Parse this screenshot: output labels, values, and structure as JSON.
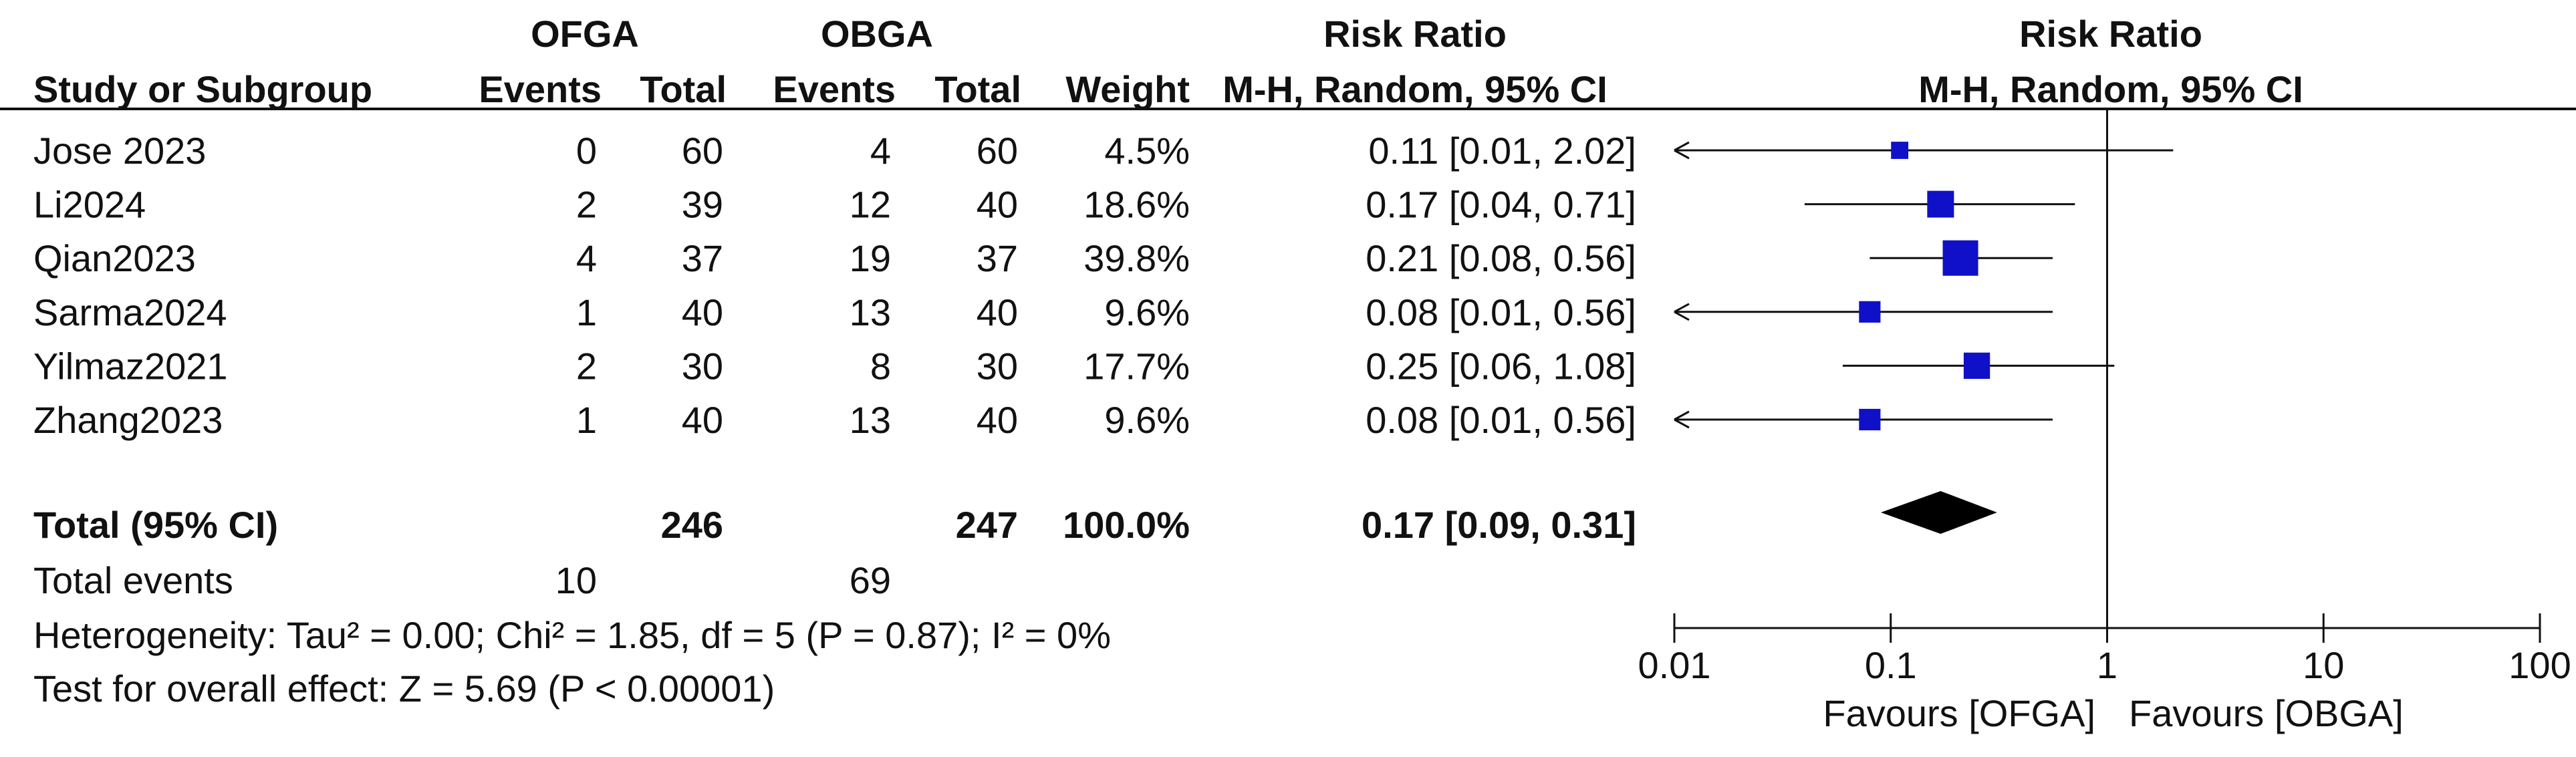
{
  "table": {
    "group1": "OFGA",
    "group2": "OBGA",
    "col_risk_ratio": "Risk Ratio",
    "plot_title": "Risk Ratio",
    "col_study": "Study or Subgroup",
    "col_events": "Events",
    "col_total": "Total",
    "col_weight": "Weight",
    "col_method": "M-H, Random, 95% CI",
    "plot_method": "M-H, Random, 95% CI",
    "total_label": "Total (95% CI)",
    "total_g1": "246",
    "total_g2": "247",
    "total_weight": "100.0%",
    "total_ci": "0.17 [0.09, 0.31]",
    "events_label": "Total events",
    "events_g1": "10",
    "events_g2": "69",
    "heterogeneity": "Heterogeneity: Tau² = 0.00; Chi² = 1.85, df = 5 (P = 0.87); I² = 0%",
    "overall_effect": "Test for overall effect: Z = 5.69 (P < 0.00001)",
    "favours_left": "Favours [OFGA]",
    "favours_right": "Favours [OBGA]"
  },
  "chart_data": {
    "type": "forest",
    "scale": "log",
    "xlim": [
      0.01,
      100
    ],
    "ticks": [
      {
        "value": 0.01,
        "label": "0.01"
      },
      {
        "value": 0.1,
        "label": "0.1"
      },
      {
        "value": 1,
        "label": "1"
      },
      {
        "value": 10,
        "label": "10"
      },
      {
        "value": 100,
        "label": "100"
      }
    ],
    "marker_color": "#1010c8",
    "studies": [
      {
        "name": "Jose 2023",
        "e1": "0",
        "n1": "60",
        "e2": "4",
        "n2": "60",
        "weight": "4.5%",
        "ci_text": "0.11 [0.01, 2.02]",
        "rr": 0.11,
        "lo": 0.01,
        "hi": 2.02,
        "w": 4.5
      },
      {
        "name": "Li2024",
        "e1": "2",
        "n1": "39",
        "e2": "12",
        "n2": "40",
        "weight": "18.6%",
        "ci_text": "0.17 [0.04, 0.71]",
        "rr": 0.17,
        "lo": 0.04,
        "hi": 0.71,
        "w": 18.6
      },
      {
        "name": "Qian2023",
        "e1": "4",
        "n1": "37",
        "e2": "19",
        "n2": "37",
        "weight": "39.8%",
        "ci_text": "0.21 [0.08, 0.56]",
        "rr": 0.21,
        "lo": 0.08,
        "hi": 0.56,
        "w": 39.8
      },
      {
        "name": "Sarma2024",
        "e1": "1",
        "n1": "40",
        "e2": "13",
        "n2": "40",
        "weight": "9.6%",
        "ci_text": "0.08 [0.01, 0.56]",
        "rr": 0.08,
        "lo": 0.01,
        "hi": 0.56,
        "w": 9.6
      },
      {
        "name": "Yilmaz2021",
        "e1": "2",
        "n1": "30",
        "e2": "8",
        "n2": "30",
        "weight": "17.7%",
        "ci_text": "0.25 [0.06, 1.08]",
        "rr": 0.25,
        "lo": 0.06,
        "hi": 1.08,
        "w": 17.7
      },
      {
        "name": "Zhang2023",
        "e1": "1",
        "n1": "40",
        "e2": "13",
        "n2": "40",
        "weight": "9.6%",
        "ci_text": "0.08 [0.01, 0.56]",
        "rr": 0.08,
        "lo": 0.01,
        "hi": 0.56,
        "w": 9.6
      }
    ],
    "pooled": {
      "rr": 0.17,
      "lo": 0.09,
      "hi": 0.31
    }
  }
}
